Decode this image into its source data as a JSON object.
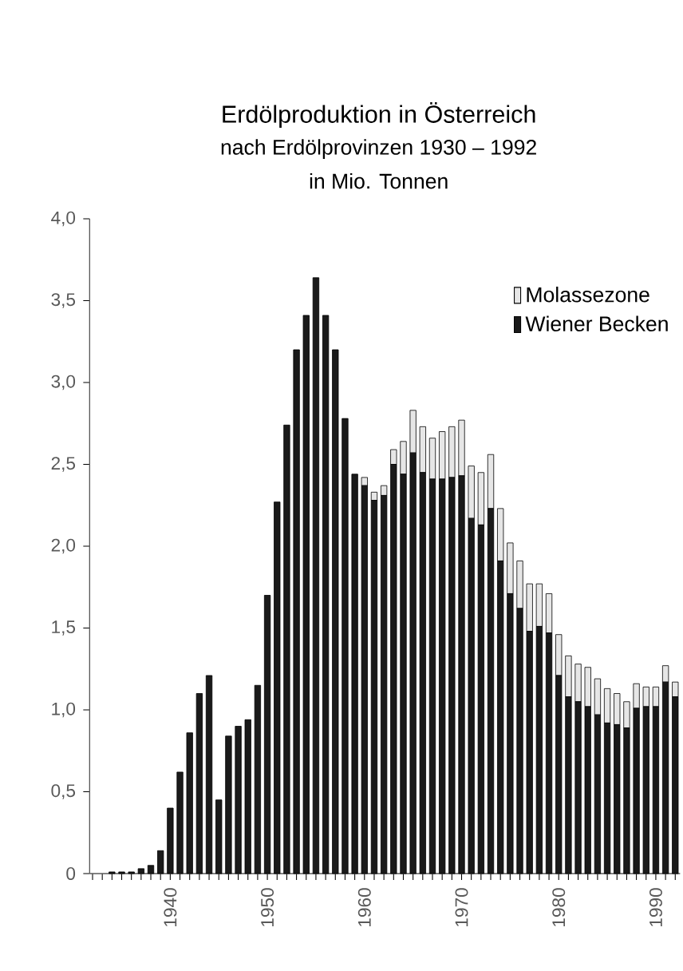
{
  "chart_data": {
    "type": "bar",
    "stacked": true,
    "title": "Erdölproduktion in Österreich",
    "subtitle": "nach Erdölprovinzen 1930 – 1992",
    "ylabel": "in Mio. Tonnen",
    "categories": [
      null,
      null,
      null,
      null,
      null,
      null,
      null,
      null,
      "1940",
      null,
      null,
      null,
      null,
      null,
      null,
      null,
      null,
      null,
      "1950",
      null,
      null,
      null,
      null,
      null,
      null,
      null,
      null,
      null,
      "1960",
      null,
      null,
      null,
      null,
      null,
      null,
      null,
      null,
      null,
      "1970",
      null,
      null,
      null,
      null,
      null,
      null,
      null,
      null,
      null,
      "1980",
      null,
      null,
      null,
      null,
      null,
      null,
      null,
      null,
      null,
      "1990",
      null,
      null
    ],
    "series": [
      {
        "name": "Wiener Becken",
        "color": "#1a1a1a",
        "values": [
          0,
          0,
          0.01,
          0.01,
          0.01,
          0.03,
          0.05,
          0.14,
          0.4,
          0.62,
          0.86,
          1.1,
          1.21,
          0.45,
          0.84,
          0.9,
          0.94,
          1.15,
          1.7,
          2.27,
          2.74,
          3.2,
          3.41,
          3.64,
          3.41,
          3.2,
          2.78,
          2.44,
          2.37,
          2.28,
          2.31,
          2.5,
          2.44,
          2.57,
          2.45,
          2.41,
          2.41,
          2.42,
          2.43,
          2.17,
          2.13,
          2.23,
          1.91,
          1.71,
          1.62,
          1.48,
          1.51,
          1.47,
          1.21,
          1.08,
          1.05,
          1.02,
          0.97,
          0.92,
          0.91,
          0.89,
          1.01,
          1.02,
          1.02,
          1.17,
          1.08
        ]
      },
      {
        "name": "Molassezone",
        "color": "#e6e6e6",
        "values": [
          0,
          0,
          0,
          0,
          0,
          0,
          0,
          0,
          0,
          0,
          0,
          0,
          0,
          0,
          0,
          0,
          0,
          0,
          0,
          0,
          0,
          0,
          0,
          0,
          0,
          0,
          0,
          0,
          0.05,
          0.05,
          0.06,
          0.09,
          0.2,
          0.26,
          0.28,
          0.25,
          0.29,
          0.31,
          0.34,
          0.32,
          0.32,
          0.33,
          0.32,
          0.31,
          0.29,
          0.29,
          0.26,
          0.24,
          0.25,
          0.25,
          0.23,
          0.24,
          0.22,
          0.21,
          0.19,
          0.16,
          0.15,
          0.12,
          0.12,
          0.1,
          0.09
        ]
      }
    ],
    "ylim": [
      0,
      4.0
    ],
    "yticks": [
      {
        "value": 0,
        "label": "0"
      },
      {
        "value": 0.5,
        "label": "0,5"
      },
      {
        "value": 1.0,
        "label": "1,0"
      },
      {
        "value": 1.5,
        "label": "1,5"
      },
      {
        "value": 2.0,
        "label": "2,0"
      },
      {
        "value": 2.5,
        "label": "2,5"
      },
      {
        "value": 3.0,
        "label": "3,0"
      },
      {
        "value": 3.5,
        "label": "3,5"
      },
      {
        "value": 4.0,
        "label": "4,0"
      }
    ],
    "grid": false,
    "legend": "top right"
  }
}
